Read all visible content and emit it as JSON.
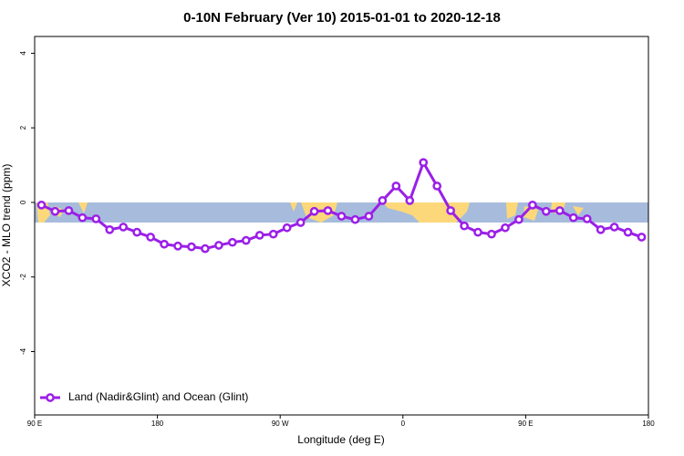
{
  "chart_data": {
    "type": "line",
    "title": "0-10N February (Ver 10)   2015-01-01 to 2020-12-18",
    "x_label": "Longitude (deg E)",
    "y_label": "XCO2 - MLO trend (ppm)",
    "xlim": [
      90,
      540
    ],
    "ylim": [
      -5.7,
      4.45
    ],
    "xticks": [
      {
        "value": 90,
        "label": "90 E"
      },
      180,
      {
        "value": 270,
        "label": "90 W"
      },
      {
        "value": 360,
        "label": "0"
      },
      {
        "value": 450,
        "label": "90 E"
      },
      {
        "value": 540,
        "label": "180"
      }
    ],
    "yticks": [
      -4,
      -2,
      0,
      2,
      4
    ],
    "legend": "bottom-left",
    "series": [
      {
        "name": "Land (Nadir&Glint) and Ocean (Glint)",
        "color": "#9b1fe8",
        "x": [
          95,
          105,
          115,
          125,
          135,
          145,
          155,
          165,
          175,
          185,
          195,
          205,
          215,
          225,
          235,
          245,
          255,
          265,
          275,
          285,
          295,
          305,
          315,
          325,
          335,
          345,
          355,
          365,
          375,
          385,
          395,
          405,
          415,
          425,
          435,
          445,
          455,
          465,
          475,
          485,
          495,
          505,
          515,
          525,
          535
        ],
        "values": [
          -0.07,
          -0.24,
          -0.22,
          -0.41,
          -0.44,
          -0.73,
          -0.66,
          -0.8,
          -0.93,
          -1.12,
          -1.17,
          -1.19,
          -1.24,
          -1.15,
          -1.07,
          -1.02,
          -0.88,
          -0.85,
          -0.68,
          -0.54,
          -0.24,
          -0.22,
          -0.37,
          -0.46,
          -0.37,
          0.05,
          0.44,
          0.05,
          1.07,
          0.44,
          -0.22,
          -0.63,
          -0.8,
          -0.85,
          -0.68,
          -0.46,
          -0.07,
          -0.24,
          -0.22,
          -0.41,
          -0.44,
          -0.73,
          -0.66,
          -0.8,
          -0.93
        ]
      }
    ]
  }
}
